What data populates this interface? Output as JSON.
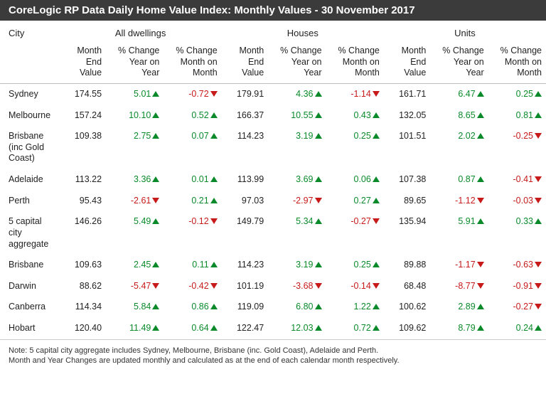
{
  "title": "CoreLogic RP Data Daily Home Value Index: Monthly Values - 30 November 2017",
  "colors": {
    "title_bg": "#3b3b3b",
    "title_text": "#ffffff",
    "text": "#222222",
    "positive": "#0a8a2a",
    "negative": "#c71a1a",
    "rule": "#bbbbbb",
    "background": "#ffffff"
  },
  "typography": {
    "title_fontsize": 15,
    "header_fontsize": 13,
    "cell_fontsize": 12.5,
    "footnote_fontsize": 11,
    "family": "Helvetica Neue, Arial, sans-serif"
  },
  "table": {
    "type": "table",
    "city_header": "City",
    "groups": [
      "All dwellings",
      "Houses",
      "Units"
    ],
    "subheaders": [
      "Month End Value",
      "% Change Year on Year",
      "% Change Month on Month"
    ],
    "rows": [
      {
        "city": "Sydney",
        "all": {
          "mev": "174.55",
          "yoy": "5.01",
          "mom": "-0.72"
        },
        "houses": {
          "mev": "179.91",
          "yoy": "4.36",
          "mom": "-1.14"
        },
        "units": {
          "mev": "161.71",
          "yoy": "6.47",
          "mom": "0.25"
        }
      },
      {
        "city": "Melbourne",
        "all": {
          "mev": "157.24",
          "yoy": "10.10",
          "mom": "0.52"
        },
        "houses": {
          "mev": "166.37",
          "yoy": "10.55",
          "mom": "0.43"
        },
        "units": {
          "mev": "132.05",
          "yoy": "8.65",
          "mom": "0.81"
        }
      },
      {
        "city": "Brisbane (inc Gold Coast)",
        "all": {
          "mev": "109.38",
          "yoy": "2.75",
          "mom": "0.07"
        },
        "houses": {
          "mev": "114.23",
          "yoy": "3.19",
          "mom": "0.25"
        },
        "units": {
          "mev": "101.51",
          "yoy": "2.02",
          "mom": "-0.25"
        }
      },
      {
        "city": "Adelaide",
        "all": {
          "mev": "113.22",
          "yoy": "3.36",
          "mom": "0.01"
        },
        "houses": {
          "mev": "113.99",
          "yoy": "3.69",
          "mom": "0.06"
        },
        "units": {
          "mev": "107.38",
          "yoy": "0.87",
          "mom": "-0.41"
        }
      },
      {
        "city": "Perth",
        "all": {
          "mev": "95.43",
          "yoy": "-2.61",
          "mom": "0.21"
        },
        "houses": {
          "mev": "97.03",
          "yoy": "-2.97",
          "mom": "0.27"
        },
        "units": {
          "mev": "89.65",
          "yoy": "-1.12",
          "mom": "-0.03"
        }
      },
      {
        "city": "5 capital city aggregate",
        "all": {
          "mev": "146.26",
          "yoy": "5.49",
          "mom": "-0.12"
        },
        "houses": {
          "mev": "149.79",
          "yoy": "5.34",
          "mom": "-0.27"
        },
        "units": {
          "mev": "135.94",
          "yoy": "5.91",
          "mom": "0.33"
        }
      },
      {
        "city": "Brisbane",
        "all": {
          "mev": "109.63",
          "yoy": "2.45",
          "mom": "0.11"
        },
        "houses": {
          "mev": "114.23",
          "yoy": "3.19",
          "mom": "0.25"
        },
        "units": {
          "mev": "89.88",
          "yoy": "-1.17",
          "mom": "-0.63"
        }
      },
      {
        "city": "Darwin",
        "all": {
          "mev": "88.62",
          "yoy": "-5.47",
          "mom": "-0.42"
        },
        "houses": {
          "mev": "101.19",
          "yoy": "-3.68",
          "mom": "-0.14"
        },
        "units": {
          "mev": "68.48",
          "yoy": "-8.77",
          "mom": "-0.91"
        }
      },
      {
        "city": "Canberra",
        "all": {
          "mev": "114.34",
          "yoy": "5.84",
          "mom": "0.86"
        },
        "houses": {
          "mev": "119.09",
          "yoy": "6.80",
          "mom": "1.22"
        },
        "units": {
          "mev": "100.62",
          "yoy": "2.89",
          "mom": "-0.27"
        }
      },
      {
        "city": "Hobart",
        "all": {
          "mev": "120.40",
          "yoy": "11.49",
          "mom": "0.64"
        },
        "houses": {
          "mev": "122.47",
          "yoy": "12.03",
          "mom": "0.72"
        },
        "units": {
          "mev": "109.62",
          "yoy": "8.79",
          "mom": "0.24"
        }
      }
    ]
  },
  "footnote": {
    "line1": "Note: 5 capital city aggregate includes Sydney, Melbourne, Brisbane (inc. Gold Coast), Adelaide and Perth.",
    "line2": "Month and Year Changes are updated monthly and calculated as at the end of each calendar month respectively."
  }
}
